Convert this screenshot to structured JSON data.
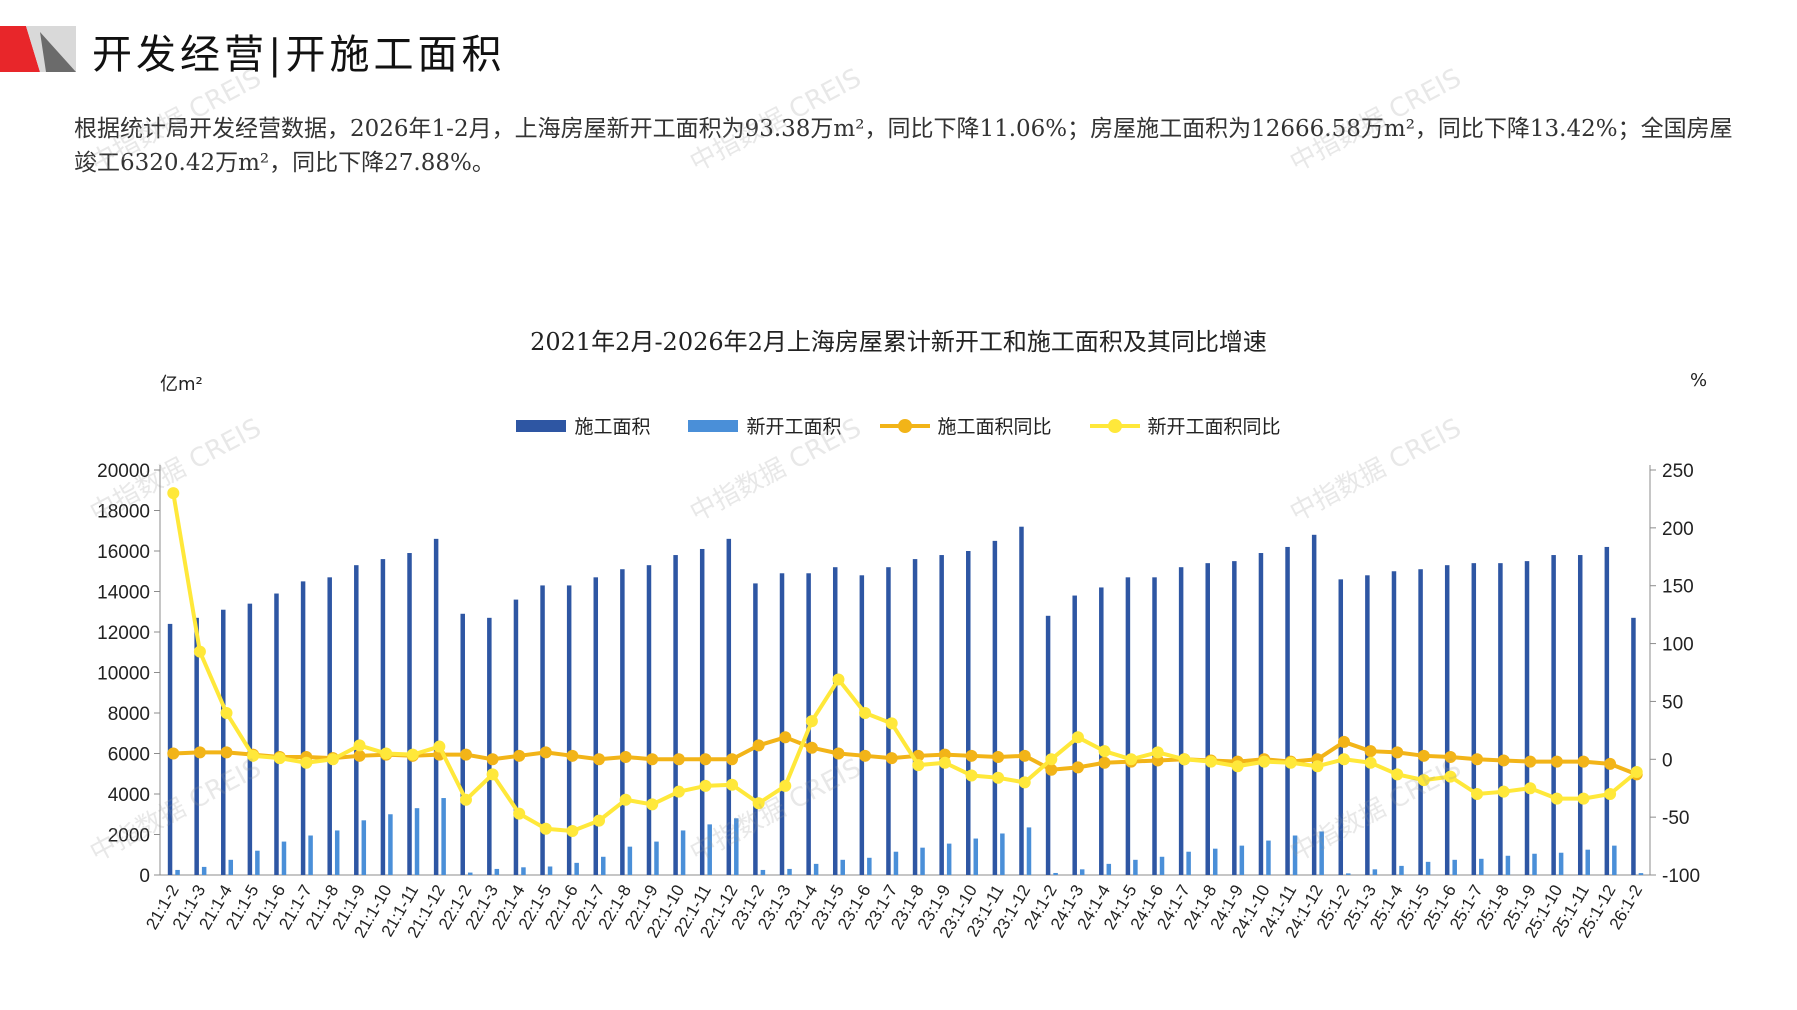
{
  "header": {
    "title": "开发经营|开施工面积"
  },
  "summary": "根据统计局开发经营数据，2026年1-2月，上海房屋新开工面积为93.38万m²，同比下降11.06%；房屋施工面积为12666.58万m²，同比下降13.42%；全国房屋竣工6320.42万m²，同比下降27.88%。",
  "watermark": "中指数据 CREIS",
  "colors": {
    "bar1": "#2E56A3",
    "bar2": "#4A8FD8",
    "line1": "#F2B418",
    "line2": "#FFE83A",
    "accent": "#E8262A"
  },
  "chart_data": {
    "type": "bar-line",
    "title": "2021年2月-2026年2月上海房屋累计新开工和施工面积及其同比增速",
    "ylabel_left": "亿m²",
    "ylabel_right": "%",
    "ylim_left": [
      0,
      20000
    ],
    "ylim_right": [
      -100,
      250
    ],
    "yticks_left": [
      "0",
      "2000",
      "4000",
      "6000",
      "8000",
      "10000",
      "12000",
      "14000",
      "16000",
      "18000",
      "20000"
    ],
    "yticks_right": [
      "-100",
      "-50",
      "0",
      "50",
      "100",
      "150",
      "200",
      "250"
    ],
    "legend": [
      "施工面积",
      "新开工面积",
      "施工面积同比",
      "新开工面积同比"
    ],
    "categories": [
      "21:1-2",
      "21:1-3",
      "21:1-4",
      "21:1-5",
      "21:1-6",
      "21:1-7",
      "21:1-8",
      "21:1-9",
      "21:1-10",
      "21:1-11",
      "21:1-12",
      "22:1-2",
      "22:1-3",
      "22:1-4",
      "22:1-5",
      "22:1-6",
      "22:1-7",
      "22:1-8",
      "22:1-9",
      "22:1-10",
      "22:1-11",
      "22:1-12",
      "23:1-2",
      "23:1-3",
      "23:1-4",
      "23:1-5",
      "23:1-6",
      "23:1-7",
      "23:1-8",
      "23:1-9",
      "23:1-10",
      "23:1-11",
      "23:1-12",
      "24:1-2",
      "24:1-3",
      "24:1-4",
      "24:1-5",
      "24:1-6",
      "24:1-7",
      "24:1-8",
      "24:1-9",
      "24:1-10",
      "24:1-11",
      "24:1-12",
      "25:1-2",
      "25:1-3",
      "25:1-4",
      "25:1-5",
      "25:1-6",
      "25:1-7",
      "25:1-8",
      "25:1-9",
      "25:1-10",
      "25:1-11",
      "25:1-12",
      "26:1-2"
    ],
    "series": [
      {
        "name": "施工面积",
        "axis": "left",
        "kind": "bar",
        "values": [
          12400,
          12700,
          13100,
          13400,
          13900,
          14500,
          14700,
          15300,
          15600,
          15900,
          16600,
          12900,
          12700,
          13600,
          14300,
          14300,
          14700,
          15100,
          15300,
          15800,
          16100,
          16600,
          14400,
          14900,
          14900,
          15200,
          14800,
          15200,
          15600,
          15800,
          16000,
          16500,
          17200,
          12800,
          13800,
          14200,
          14700,
          14700,
          15200,
          15400,
          15500,
          15900,
          16200,
          16800,
          14600,
          14800,
          15000,
          15100,
          15300,
          15400,
          15400,
          15500,
          15800,
          15800,
          16200,
          12700
        ]
      },
      {
        "name": "新开工面积",
        "axis": "left",
        "kind": "bar",
        "values": [
          250,
          400,
          750,
          1200,
          1650,
          1950,
          2200,
          2700,
          3000,
          3300,
          3800,
          120,
          300,
          380,
          420,
          600,
          900,
          1400,
          1650,
          2200,
          2500,
          2800,
          250,
          300,
          550,
          750,
          850,
          1150,
          1350,
          1550,
          1800,
          2050,
          2350,
          100,
          280,
          550,
          750,
          900,
          1150,
          1300,
          1450,
          1700,
          1950,
          2150,
          80,
          280,
          450,
          650,
          750,
          800,
          950,
          1050,
          1100,
          1250,
          1450,
          93
        ]
      },
      {
        "name": "施工面积同比",
        "axis": "right",
        "kind": "line",
        "values": [
          5,
          6,
          6,
          4,
          2,
          2,
          1,
          3,
          4,
          3,
          4,
          4,
          0,
          3,
          6,
          3,
          0,
          2,
          0,
          0,
          0,
          0,
          12,
          19,
          10,
          5,
          3,
          1,
          3,
          4,
          3,
          2,
          3,
          -9,
          -7,
          -3,
          -2,
          -1,
          0,
          -1,
          -2,
          0,
          -2,
          0,
          15,
          7,
          6,
          3,
          2,
          0,
          -1,
          -2,
          -2,
          -2,
          -4,
          -13
        ]
      },
      {
        "name": "新开工面积同比",
        "axis": "right",
        "kind": "line",
        "values": [
          230,
          93,
          40,
          3,
          1,
          -3,
          0,
          12,
          5,
          4,
          11,
          -35,
          -13,
          -47,
          -60,
          -62,
          -53,
          -35,
          -39,
          -28,
          -23,
          -22,
          -38,
          -23,
          33,
          69,
          40,
          31,
          -5,
          -3,
          -14,
          -16,
          -20,
          0,
          19,
          7,
          0,
          6,
          0,
          -2,
          -6,
          -2,
          -3,
          -6,
          0,
          -3,
          -13,
          -18,
          -15,
          -30,
          -28,
          -25,
          -34,
          -34,
          -30,
          -11
        ]
      }
    ]
  }
}
